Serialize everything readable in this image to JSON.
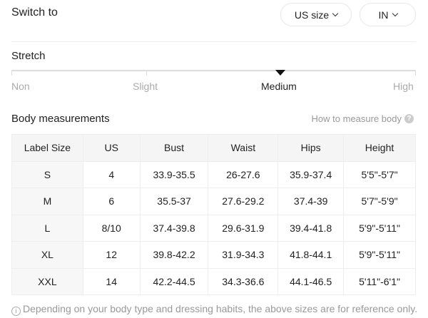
{
  "header": {
    "title": "Switch to",
    "size_select": "US size",
    "unit_select": "IN"
  },
  "stretch": {
    "title": "Stretch",
    "levels": [
      "Non",
      "Slight",
      "Medium",
      "High"
    ],
    "selected": "Medium"
  },
  "measurements": {
    "title": "Body measurements",
    "help_link": "How to measure body",
    "columns": [
      "Label Size",
      "US",
      "Bust",
      "Waist",
      "Hips",
      "Height"
    ],
    "rows": [
      [
        "S",
        "4",
        "33.9-35.5",
        "26-27.6",
        "35.9-37.4",
        "5'5\"-5'7\""
      ],
      [
        "M",
        "6",
        "35.5-37",
        "27.6-29.2",
        "37.4-39",
        "5'7\"-5'9\""
      ],
      [
        "L",
        "8/10",
        "37.4-39.8",
        "29.6-31.9",
        "39.4-41.8",
        "5'9\"-5'11\""
      ],
      [
        "XL",
        "12",
        "39.8-42.2",
        "31.9-34.3",
        "41.8-44.1",
        "5'9\"-5'11\""
      ],
      [
        "XXL",
        "14",
        "42.2-44.5",
        "34.3-36.6",
        "44.1-46.5",
        "5'11\"-6'1\""
      ]
    ]
  },
  "footnote": "Depending on your body type and dressing habits, the above sizes are for reference only."
}
